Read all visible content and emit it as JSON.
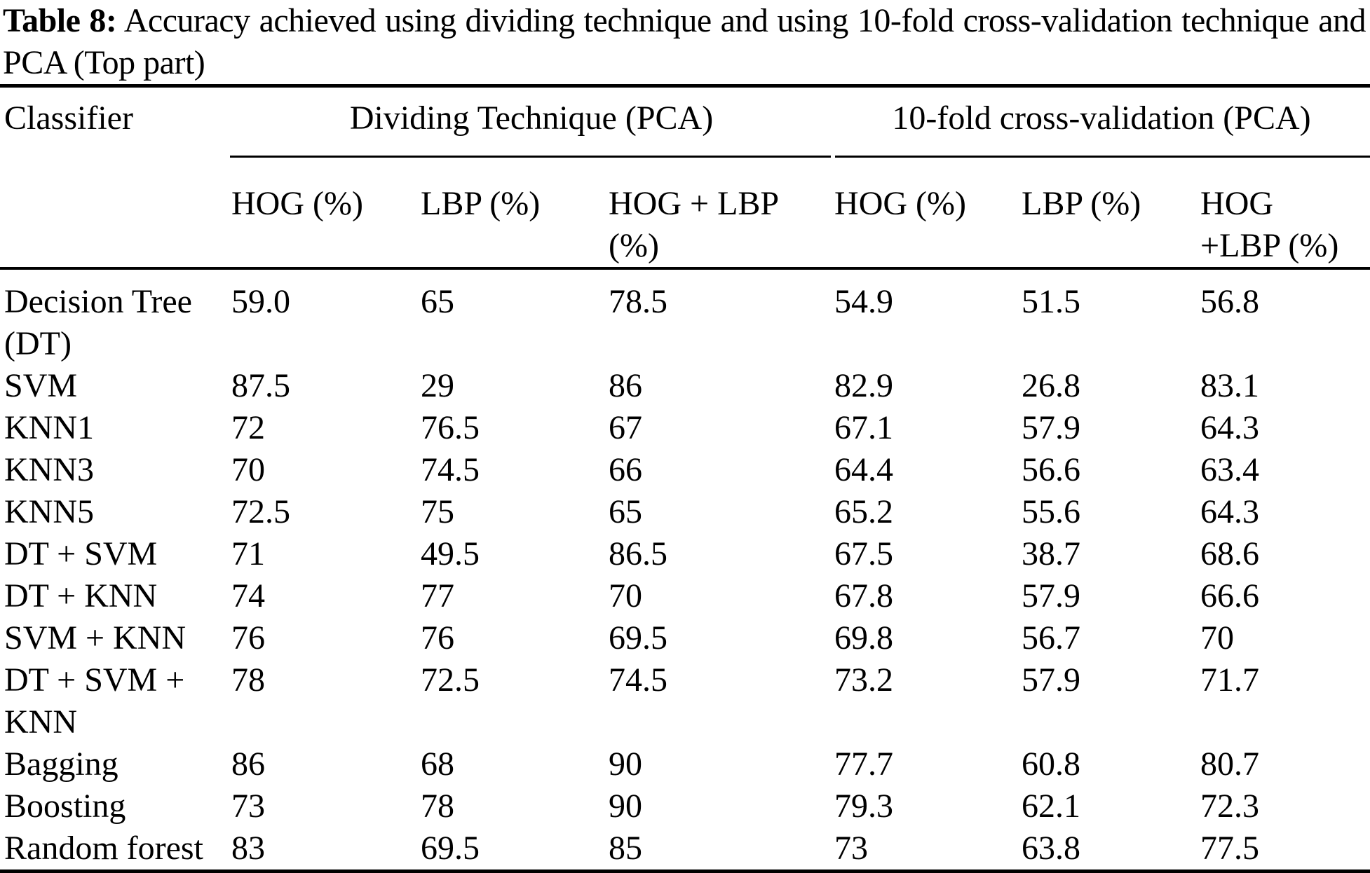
{
  "page": {
    "background": "#ffffff",
    "text_color": "#000000",
    "rule_color": "#000000"
  },
  "caption": {
    "label": "Table 8:",
    "text": "Accuracy achieved using dividing technique and using 10-fold cross-validation technique and PCA (Top part)"
  },
  "table": {
    "classifier_header": "Classifier",
    "group_headers": [
      "Dividing Technique (PCA)",
      "10-fold cross-validation (PCA)"
    ],
    "sub_headers": [
      "HOG (%)",
      "LBP (%)",
      "HOG + LBP\n(%)",
      "HOG (%)",
      "LBP (%)",
      "HOG\n+LBP (%)"
    ],
    "rows": [
      [
        "Decision Tree\n(DT)",
        "59.0",
        "65",
        "78.5",
        "54.9",
        "51.5",
        "56.8"
      ],
      [
        "SVM",
        "87.5",
        "29",
        "86",
        "82.9",
        "26.8",
        "83.1"
      ],
      [
        "KNN1",
        "72",
        "76.5",
        "67",
        "67.1",
        "57.9",
        "64.3"
      ],
      [
        "KNN3",
        "70",
        "74.5",
        "66",
        "64.4",
        "56.6",
        "63.4"
      ],
      [
        "KNN5",
        "72.5",
        "75",
        "65",
        "65.2",
        "55.6",
        "64.3"
      ],
      [
        "DT + SVM",
        "71",
        "49.5",
        "86.5",
        "67.5",
        "38.7",
        "68.6"
      ],
      [
        "DT + KNN",
        "74",
        "77",
        "70",
        "67.8",
        "57.9",
        "66.6"
      ],
      [
        "SVM + KNN",
        "76",
        "76",
        "69.5",
        "69.8",
        "56.7",
        "70"
      ],
      [
        "DT + SVM +\nKNN",
        "78",
        "72.5",
        "74.5",
        "73.2",
        "57.9",
        "71.7"
      ],
      [
        "Bagging",
        "86",
        "68",
        "90",
        "77.7",
        "60.8",
        "80.7"
      ],
      [
        "Boosting",
        "73",
        "78",
        "90",
        "79.3",
        "62.1",
        "72.3"
      ],
      [
        "Random forest",
        "83",
        "69.5",
        "85",
        "73",
        "63.8",
        "77.5"
      ]
    ]
  }
}
